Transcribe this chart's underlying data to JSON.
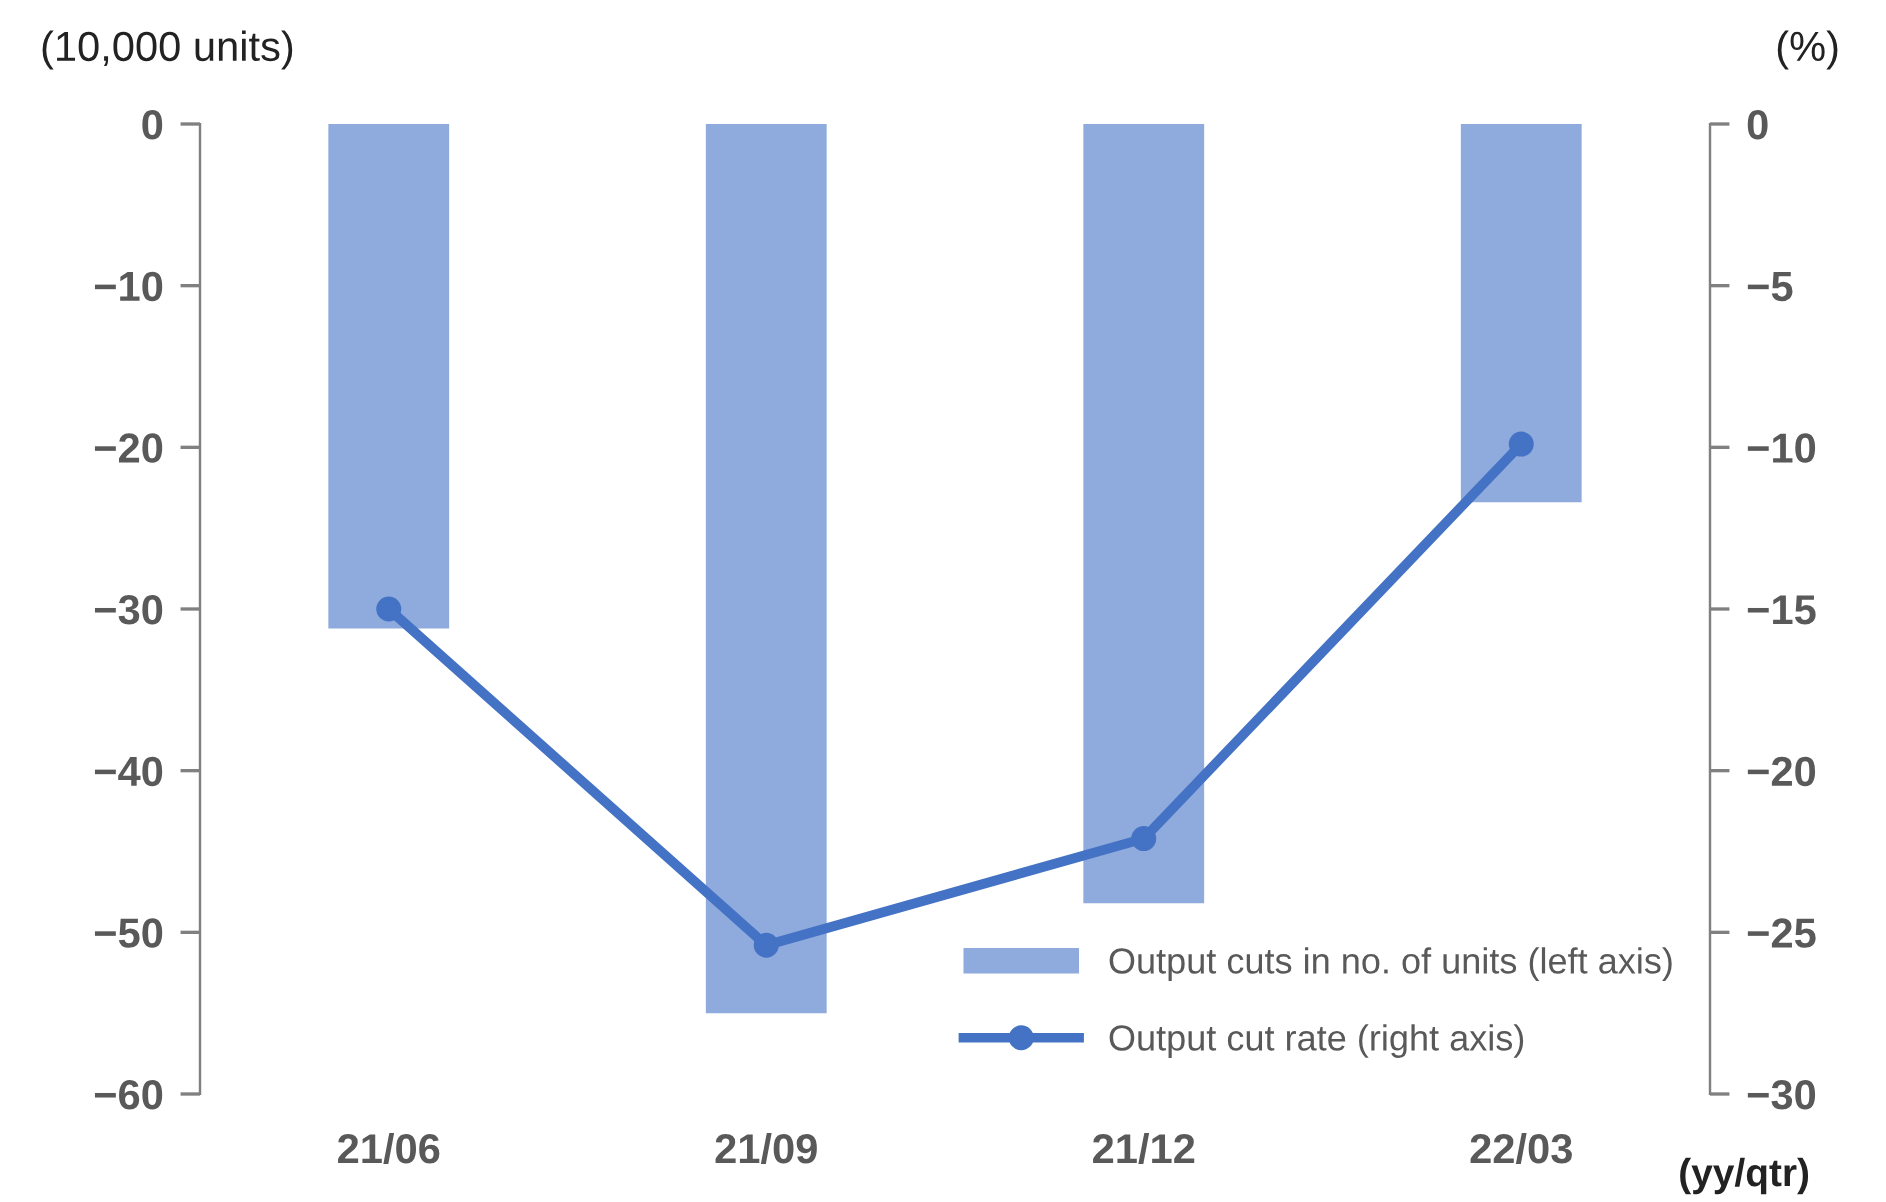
{
  "chart_data": {
    "type": "bar",
    "ylabel": "(10,000 units)",
    "y2label": "(%)",
    "annotations": [
      "(yy/qtr)"
    ],
    "categories": [
      "21/06",
      "21/09",
      "21/12",
      "22/03"
    ],
    "series": [
      {
        "name": "Output cuts in no. of units (left axis)",
        "color": "#8faadc",
        "values": [
          -31.2,
          -55.0,
          -48.2,
          -23.4
        ]
      },
      {
        "name": "Output cut rate (right axis)",
        "type": "line",
        "axis": "y2",
        "color": "#4472c4",
        "marker": "circle",
        "values": [
          -15.0,
          -25.4,
          -22.1,
          -9.9
        ]
      }
    ],
    "ylim": [
      -60,
      0
    ],
    "yticks": [
      -60,
      -50,
      -40,
      -30,
      -20,
      -10,
      0
    ],
    "y2lim": [
      -30,
      0
    ],
    "y2ticks": [
      -30,
      -25,
      -20,
      -15,
      -10,
      -5,
      0
    ],
    "grid": false,
    "legend": "bottom right"
  }
}
